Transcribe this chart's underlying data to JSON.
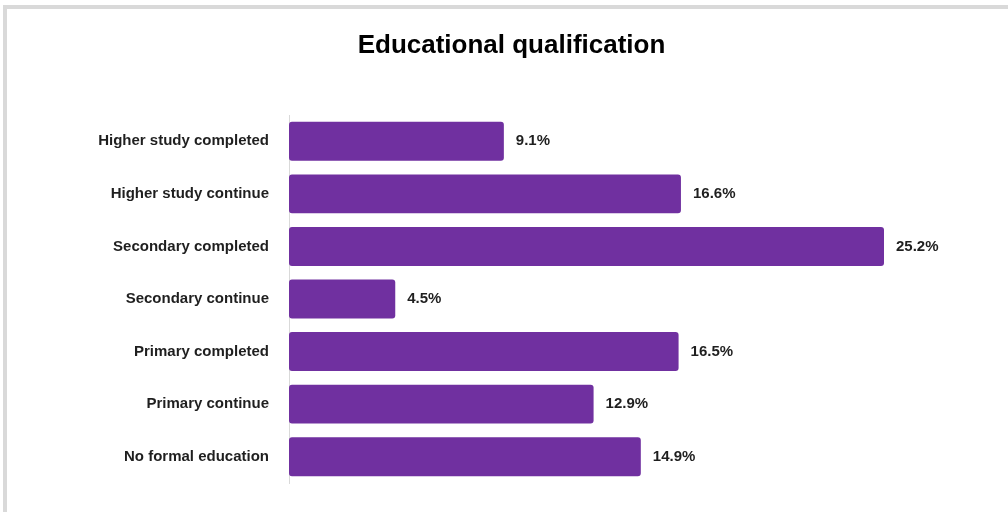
{
  "chart_data": {
    "type": "bar",
    "orientation": "horizontal",
    "title": "Educational qualification",
    "categories": [
      "Higher study completed",
      "Higher study continue",
      "Secondary completed",
      "Secondary continue",
      "Primary completed",
      "Primary continue",
      "No formal education"
    ],
    "values": [
      9.1,
      16.6,
      25.2,
      4.5,
      16.5,
      12.9,
      14.9
    ],
    "value_labels": [
      "9.1%",
      "16.6%",
      "25.2%",
      "4.5%",
      "16.5%",
      "12.9%",
      "14.9%"
    ],
    "color": "#7030a0",
    "tick_labels": "y"
  }
}
